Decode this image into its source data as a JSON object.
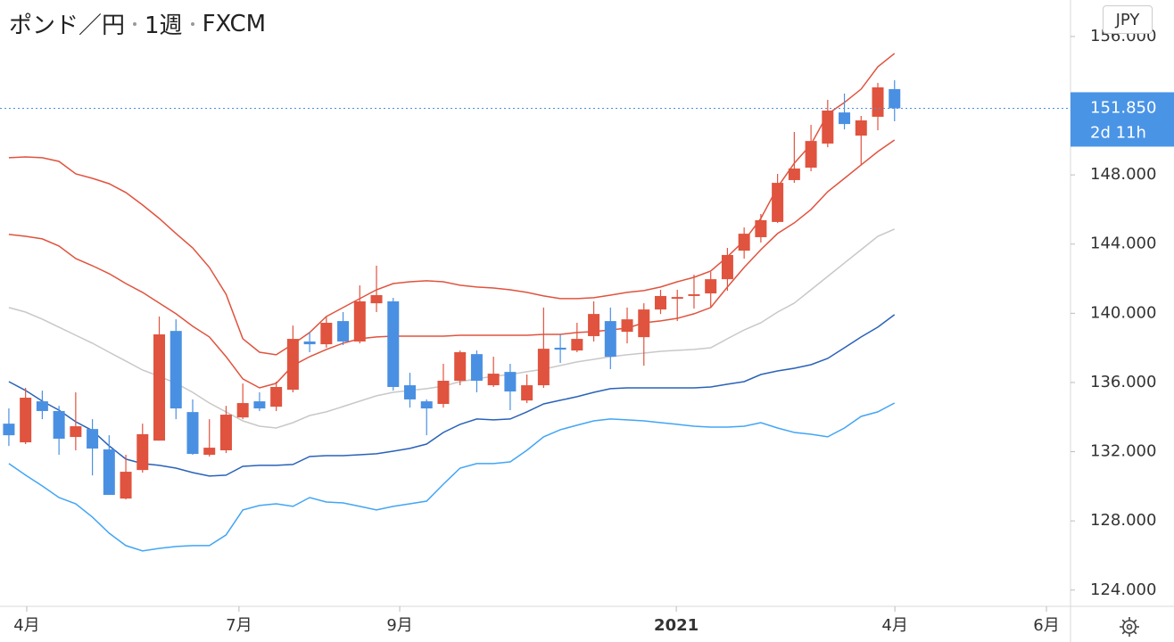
{
  "chart_data": {
    "type": "candlestick",
    "title": "ポンド／円",
    "interval": "1週",
    "source": "FXCM",
    "currency": "JPY",
    "up_color": "#e0533e",
    "down_color": "#4a90e2",
    "x": [
      0,
      1,
      2,
      3,
      4,
      5,
      6,
      7,
      8,
      9,
      10,
      11,
      12,
      13,
      14,
      15,
      16,
      17,
      18,
      19,
      20,
      21,
      22,
      23,
      24,
      25,
      26,
      27,
      28,
      29,
      30,
      31,
      32,
      33,
      34,
      35,
      36,
      37,
      38,
      39,
      40,
      41,
      42,
      43,
      44,
      45,
      46,
      47,
      48,
      49,
      50,
      51,
      52,
      53
    ],
    "open": [
      133.62,
      132.54,
      134.91,
      134.35,
      132.85,
      133.31,
      132.13,
      129.29,
      130.94,
      132.64,
      138.98,
      134.29,
      131.82,
      132.08,
      133.98,
      134.91,
      134.6,
      135.58,
      138.37,
      138.21,
      139.55,
      138.37,
      140.58,
      140.69,
      135.84,
      134.91,
      134.76,
      136.1,
      137.64,
      135.84,
      136.61,
      134.96,
      135.84,
      138.01,
      137.85,
      138.68,
      139.55,
      138.93,
      138.62,
      140.22,
      140.84,
      141.0,
      141.15,
      141.97,
      143.62,
      144.4,
      145.28,
      147.7,
      148.42,
      149.81,
      151.61,
      150.27,
      151.36,
      152.96
    ],
    "high": [
      134.5,
      135.69,
      135.53,
      134.65,
      135.43,
      133.88,
      132.95,
      131.82,
      133.62,
      139.81,
      139.65,
      135.02,
      133.88,
      134.65,
      135.94,
      135.43,
      136.05,
      139.29,
      138.93,
      139.81,
      140.07,
      141.61,
      142.75,
      140.89,
      136.56,
      135.02,
      137.08,
      137.85,
      137.85,
      137.49,
      137.08,
      136.46,
      140.33,
      138.78,
      139.45,
      140.69,
      140.33,
      140.33,
      140.58,
      141.36,
      141.36,
      142.23,
      142.39,
      143.78,
      144.96,
      145.74,
      148.06,
      150.48,
      150.89,
      152.34,
      152.7,
      151.41,
      153.32,
      153.47
    ],
    "low": [
      132.33,
      132.44,
      133.88,
      131.82,
      132.08,
      130.63,
      129.5,
      129.24,
      130.79,
      132.64,
      133.88,
      131.82,
      131.72,
      131.92,
      133.88,
      134.35,
      134.35,
      135.43,
      137.75,
      138.01,
      138.16,
      138.26,
      140.07,
      135.53,
      134.55,
      132.95,
      134.55,
      135.84,
      135.43,
      135.74,
      134.4,
      134.81,
      135.69,
      137.13,
      137.75,
      138.37,
      136.77,
      138.26,
      136.97,
      139.96,
      139.55,
      140.27,
      140.33,
      141.3,
      143.16,
      144.09,
      145.22,
      147.54,
      148.21,
      149.6,
      150.63,
      148.57,
      150.58,
      151.1
    ],
    "close": [
      132.95,
      135.12,
      134.35,
      132.75,
      133.47,
      132.18,
      129.5,
      130.84,
      133.01,
      138.78,
      134.5,
      131.87,
      132.23,
      134.14,
      134.81,
      134.5,
      135.74,
      138.52,
      138.21,
      139.45,
      138.37,
      140.69,
      141.05,
      135.74,
      135.02,
      134.5,
      136.1,
      137.75,
      136.1,
      136.51,
      135.48,
      135.84,
      137.95,
      137.9,
      138.52,
      139.96,
      137.49,
      139.65,
      140.22,
      141.0,
      140.94,
      141.1,
      141.97,
      143.37,
      144.6,
      145.38,
      147.54,
      148.37,
      149.96,
      151.72,
      150.94,
      151.15,
      153.06,
      151.85
    ],
    "bands": [
      {
        "color": "#e0533e",
        "values": [
          148.99,
          149.04,
          148.99,
          148.78,
          148.06,
          147.8,
          147.49,
          146.98,
          146.26,
          145.48,
          144.61,
          143.78,
          142.65,
          141.1,
          138.53,
          137.75,
          137.6,
          138.22,
          138.89,
          139.81,
          140.33,
          140.85,
          141.36,
          141.72,
          141.82,
          141.88,
          141.82,
          141.62,
          141.52,
          141.46,
          141.36,
          141.21,
          141.0,
          140.85,
          140.85,
          140.9,
          141.05,
          141.21,
          141.31,
          141.52,
          141.82,
          142.08,
          142.44,
          143.27,
          144.2,
          145.48,
          147.29,
          148.68,
          149.76,
          151.52,
          152.19,
          152.96,
          154.25,
          155.02
        ]
      },
      {
        "color": "#e0533e",
        "values": [
          144.56,
          144.45,
          144.3,
          143.89,
          143.16,
          142.75,
          142.29,
          141.72,
          141.21,
          140.59,
          139.97,
          139.25,
          138.63,
          137.49,
          136.21,
          135.69,
          135.95,
          136.98,
          137.49,
          137.91,
          138.27,
          138.53,
          138.63,
          138.68,
          138.68,
          138.68,
          138.68,
          138.73,
          138.73,
          138.73,
          138.73,
          138.73,
          138.78,
          138.78,
          138.89,
          138.94,
          139.04,
          139.14,
          139.45,
          139.56,
          139.71,
          139.97,
          140.33,
          141.52,
          142.65,
          143.68,
          144.61,
          145.23,
          146.0,
          147.03,
          147.8,
          148.58,
          149.35,
          150.02
        ]
      },
      {
        "color": "#c8c8c8",
        "values": [
          140.33,
          140.07,
          139.66,
          139.2,
          138.73,
          138.27,
          137.75,
          137.24,
          136.72,
          136.36,
          135.95,
          135.43,
          134.81,
          134.3,
          133.78,
          133.47,
          133.37,
          133.68,
          134.09,
          134.3,
          134.61,
          134.92,
          135.23,
          135.43,
          135.54,
          135.64,
          135.79,
          136.05,
          136.21,
          136.36,
          136.46,
          136.62,
          136.77,
          136.98,
          137.19,
          137.34,
          137.49,
          137.6,
          137.7,
          137.8,
          137.86,
          137.91,
          138.01,
          138.53,
          139.04,
          139.45,
          140.07,
          140.59,
          141.36,
          142.13,
          142.91,
          143.68,
          144.45,
          144.87
        ]
      },
      {
        "color": "#2962b8",
        "values": [
          136.05,
          135.54,
          134.92,
          134.4,
          133.73,
          133.22,
          132.34,
          131.57,
          131.31,
          131.21,
          131.05,
          130.79,
          130.59,
          130.64,
          131.15,
          131.21,
          131.21,
          131.26,
          131.72,
          131.77,
          131.77,
          131.82,
          131.88,
          132.03,
          132.19,
          132.44,
          133.11,
          133.58,
          133.89,
          133.84,
          133.89,
          134.3,
          134.76,
          134.97,
          135.18,
          135.43,
          135.64,
          135.69,
          135.69,
          135.69,
          135.69,
          135.69,
          135.74,
          135.9,
          136.05,
          136.46,
          136.67,
          136.82,
          137.03,
          137.39,
          138.01,
          138.63,
          139.2,
          139.92
        ]
      },
      {
        "color": "#42a5f5",
        "values": [
          131.31,
          130.64,
          130.02,
          129.35,
          128.99,
          128.22,
          127.29,
          126.57,
          126.26,
          126.41,
          126.52,
          126.57,
          126.57,
          127.19,
          128.63,
          128.89,
          128.99,
          128.84,
          129.35,
          129.09,
          129.04,
          128.84,
          128.63,
          128.84,
          128.99,
          129.14,
          130.12,
          131.05,
          131.31,
          131.31,
          131.41,
          132.08,
          132.86,
          133.27,
          133.53,
          133.78,
          133.89,
          133.84,
          133.78,
          133.68,
          133.58,
          133.47,
          133.42,
          133.42,
          133.47,
          133.68,
          133.37,
          133.11,
          133.01,
          132.86,
          133.37,
          134.04,
          134.3,
          134.81
        ]
      }
    ],
    "xlim": [
      -0.53,
      63.53
    ],
    "xticks": [
      {
        "value": 1.07,
        "label": "4月"
      },
      {
        "value": 13.77,
        "label": "7月"
      },
      {
        "value": 23.39,
        "label": "9月"
      },
      {
        "value": 39.94,
        "label": "2021",
        "bold": true
      },
      {
        "value": 53.02,
        "label": "4月"
      },
      {
        "value": 62.09,
        "label": "6月"
      }
    ],
    "ylim": [
      123.06,
      158.11
    ],
    "yticks": [
      {
        "value": 124,
        "label": "124.000"
      },
      {
        "value": 128,
        "label": "128.000"
      },
      {
        "value": 132,
        "label": "132.000"
      },
      {
        "value": 136,
        "label": "136.000"
      },
      {
        "value": 140,
        "label": "140.000"
      },
      {
        "value": 144,
        "label": "144.000"
      },
      {
        "value": 148,
        "label": "148.000"
      },
      {
        "value": 152,
        "label": "152.000"
      },
      {
        "value": 156,
        "label": "156.000"
      }
    ],
    "current_price": 151.85,
    "current_price_label": "151.850",
    "countdown": "2d 11h"
  }
}
